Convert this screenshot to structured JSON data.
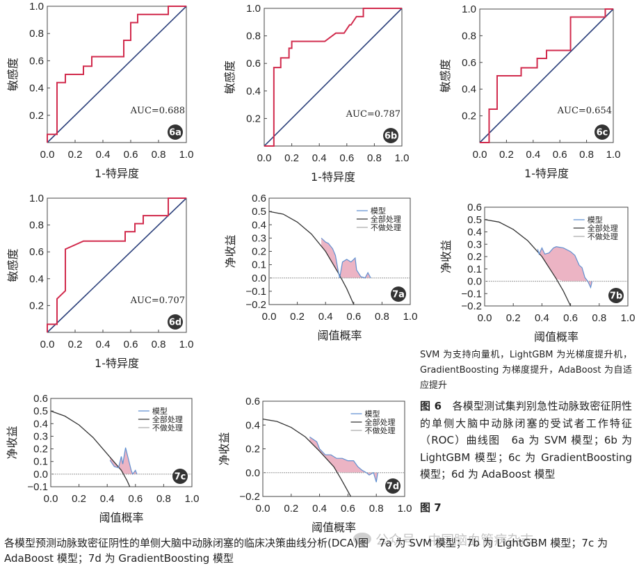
{
  "roc_axes": {
    "ylabel": "敏感度",
    "xlabel": "1-特异度",
    "xticks": [
      "0.0",
      "0.2",
      "0.4",
      "0.6",
      "0.8",
      "1.0"
    ],
    "yticks": [
      "0.2",
      "0.4",
      "0.6",
      "0.8",
      "1.0"
    ]
  },
  "dca_axes": {
    "ylabel": "净收益",
    "xlabel": "阈值概率",
    "xticks": [
      "0.0",
      "0.2",
      "0.4",
      "0.6",
      "0.8",
      "1.0"
    ]
  },
  "legend": {
    "model": "模型",
    "all": "全部处理",
    "none": "不做处理"
  },
  "captions": {
    "note": "SVM 为支持向量机，LightGBM 为光梯度提升机，GradientBoosting 为梯度提升，AdaBoost 为自适应提升",
    "fig6_label": "图 6",
    "fig6_text": "各模型测试集判别急性动脉致密征阴性的单侧大脑中动脉闭塞的受试者工作特征（ROC）曲线图　6a 为 SVM 模型；6b 为 LightGBM 模型；6c 为 GradientBoosting 模型；6d 为 AdaBoost 模型",
    "fig7_label": "图 7",
    "fig7_text": "各模型预测动脉致密征阴性的单侧大脑中动脉闭塞的临床决策曲线分析(DCA)图　7a 为 SVM 模型；7b 为 LightGBM 模型；7c 为AdaBoost 模型；7d 为 GradientBoosting 模型",
    "watermark": "公众号 · 中国脑血管病杂志"
  },
  "chart_data": [
    {
      "id": "6a",
      "type": "line",
      "badge": "6a",
      "auc_label": "AUC=0.688",
      "xlim": [
        0,
        1
      ],
      "ylim": [
        0,
        1
      ],
      "roc": [
        [
          0,
          0
        ],
        [
          0,
          0.06
        ],
        [
          0.07,
          0.06
        ],
        [
          0.07,
          0.44
        ],
        [
          0.13,
          0.44
        ],
        [
          0.13,
          0.5
        ],
        [
          0.26,
          0.5
        ],
        [
          0.26,
          0.56
        ],
        [
          0.32,
          0.56
        ],
        [
          0.32,
          0.63
        ],
        [
          0.55,
          0.63
        ],
        [
          0.55,
          0.75
        ],
        [
          0.6,
          0.75
        ],
        [
          0.6,
          0.88
        ],
        [
          0.65,
          0.88
        ],
        [
          0.65,
          0.94
        ],
        [
          0.87,
          0.94
        ],
        [
          0.87,
          1
        ],
        [
          1,
          1
        ]
      ]
    },
    {
      "id": "6b",
      "type": "line",
      "badge": "6b",
      "auc_label": "AUC=0.787",
      "xlim": [
        0,
        1
      ],
      "ylim": [
        0,
        1
      ],
      "roc": [
        [
          0,
          0
        ],
        [
          0.07,
          0
        ],
        [
          0.07,
          0.57
        ],
        [
          0.12,
          0.57
        ],
        [
          0.12,
          0.64
        ],
        [
          0.18,
          0.64
        ],
        [
          0.18,
          0.71
        ],
        [
          0.2,
          0.71
        ],
        [
          0.2,
          0.76
        ],
        [
          0.44,
          0.76
        ],
        [
          0.52,
          0.82
        ],
        [
          0.58,
          0.82
        ],
        [
          0.62,
          0.88
        ],
        [
          0.63,
          0.88
        ],
        [
          0.67,
          0.94
        ],
        [
          0.72,
          0.94
        ],
        [
          0.72,
          1
        ],
        [
          1,
          1
        ]
      ]
    },
    {
      "id": "6c",
      "type": "line",
      "badge": "6c",
      "auc_label": "AUC=0.654",
      "xlim": [
        0,
        1
      ],
      "ylim": [
        0,
        1
      ],
      "roc": [
        [
          0,
          0
        ],
        [
          0.07,
          0
        ],
        [
          0.07,
          0.25
        ],
        [
          0.13,
          0.25
        ],
        [
          0.13,
          0.5
        ],
        [
          0.31,
          0.5
        ],
        [
          0.31,
          0.56
        ],
        [
          0.43,
          0.56
        ],
        [
          0.43,
          0.63
        ],
        [
          0.5,
          0.63
        ],
        [
          0.5,
          0.69
        ],
        [
          0.68,
          0.69
        ],
        [
          0.68,
          0.94
        ],
        [
          0.94,
          0.94
        ],
        [
          0.94,
          1
        ],
        [
          1,
          1
        ]
      ]
    },
    {
      "id": "6d",
      "type": "line",
      "badge": "6d",
      "auc_label": "AUC=0.707",
      "xlim": [
        0,
        1
      ],
      "ylim": [
        0,
        1
      ],
      "roc": [
        [
          0,
          0
        ],
        [
          0,
          0.06
        ],
        [
          0.07,
          0.06
        ],
        [
          0.07,
          0.25
        ],
        [
          0.13,
          0.31
        ],
        [
          0.13,
          0.62
        ],
        [
          0.26,
          0.68
        ],
        [
          0.56,
          0.68
        ],
        [
          0.56,
          0.75
        ],
        [
          0.63,
          0.75
        ],
        [
          0.63,
          0.81
        ],
        [
          0.69,
          0.81
        ],
        [
          0.69,
          0.87
        ],
        [
          0.87,
          0.87
        ],
        [
          0.87,
          1
        ],
        [
          1,
          1
        ]
      ]
    },
    {
      "id": "7a",
      "type": "area",
      "badge": "7a",
      "xlim": [
        0,
        1
      ],
      "ylim": [
        -0.2,
        0.6
      ],
      "yticks": [
        "0.6",
        "0.5",
        "0.4",
        "0.3",
        "0.2",
        "0.1",
        "0.0",
        "−0.1",
        "−0.2"
      ],
      "all": [
        [
          0,
          0.5
        ],
        [
          0.1,
          0.48
        ],
        [
          0.2,
          0.42
        ],
        [
          0.3,
          0.33
        ],
        [
          0.4,
          0.2
        ],
        [
          0.5,
          0.02
        ],
        [
          0.55,
          -0.08
        ],
        [
          0.6,
          -0.2
        ]
      ],
      "model": [
        [
          0.37,
          0.3
        ],
        [
          0.4,
          0.27
        ],
        [
          0.42,
          0.26
        ],
        [
          0.45,
          0.22
        ],
        [
          0.47,
          0.17
        ],
        [
          0.49,
          0.05
        ],
        [
          0.5,
          0.0
        ],
        [
          0.52,
          0.12
        ],
        [
          0.55,
          0.14
        ],
        [
          0.58,
          0.12
        ],
        [
          0.61,
          0.15
        ],
        [
          0.62,
          0.06
        ],
        [
          0.65,
          0.01
        ],
        [
          0.68,
          0.0
        ],
        [
          0.7,
          0.04
        ],
        [
          0.72,
          0.0
        ]
      ]
    },
    {
      "id": "7b",
      "type": "area",
      "badge": "7b",
      "xlim": [
        0,
        1
      ],
      "ylim": [
        -0.2,
        0.6
      ],
      "yticks": [
        "0.6",
        "0.5",
        "0.4",
        "0.3",
        "0.2",
        "0.1",
        "0.0",
        "−0.1",
        "−0.2"
      ],
      "all": [
        [
          0,
          0.5
        ],
        [
          0.1,
          0.48
        ],
        [
          0.2,
          0.42
        ],
        [
          0.3,
          0.33
        ],
        [
          0.4,
          0.2
        ],
        [
          0.5,
          0.02
        ],
        [
          0.55,
          -0.08
        ],
        [
          0.6,
          -0.2
        ]
      ],
      "model": [
        [
          0.37,
          0.26
        ],
        [
          0.38,
          0.22
        ],
        [
          0.4,
          0.27
        ],
        [
          0.42,
          0.22
        ],
        [
          0.45,
          0.23
        ],
        [
          0.48,
          0.27
        ],
        [
          0.5,
          0.28
        ],
        [
          0.55,
          0.27
        ],
        [
          0.6,
          0.24
        ],
        [
          0.63,
          0.21
        ],
        [
          0.66,
          0.13
        ],
        [
          0.68,
          0.11
        ],
        [
          0.7,
          0.03
        ],
        [
          0.72,
          0.0
        ],
        [
          0.74,
          -0.05
        ],
        [
          0.75,
          0.0
        ]
      ]
    },
    {
      "id": "7c",
      "type": "area",
      "badge": "7c",
      "xlim": [
        0,
        1
      ],
      "ylim": [
        -0.1,
        0.6
      ],
      "yticks": [
        "0.6",
        "0.5",
        "0.4",
        "0.3",
        "0.2",
        "0.1",
        "0.0",
        "−0.1"
      ],
      "all": [
        [
          0,
          0.5
        ],
        [
          0.1,
          0.46
        ],
        [
          0.2,
          0.39
        ],
        [
          0.3,
          0.29
        ],
        [
          0.4,
          0.16
        ],
        [
          0.5,
          0.03
        ],
        [
          0.54,
          -0.05
        ],
        [
          0.56,
          -0.1
        ]
      ],
      "model": [
        [
          0.42,
          0.11
        ],
        [
          0.45,
          0.06
        ],
        [
          0.48,
          0.05
        ],
        [
          0.5,
          0.14
        ],
        [
          0.51,
          0.08
        ],
        [
          0.53,
          0.21
        ],
        [
          0.55,
          0.12
        ],
        [
          0.57,
          0.03
        ],
        [
          0.58,
          0.0
        ],
        [
          0.6,
          0.03
        ],
        [
          0.61,
          0.0
        ]
      ]
    },
    {
      "id": "7d",
      "type": "area",
      "badge": "7d",
      "xlim": [
        0,
        1
      ],
      "ylim": [
        -0.2,
        0.6
      ],
      "yticks": [
        "0.6",
        "0.4",
        "0.2",
        "0.0",
        "−0.2"
      ],
      "all": [
        [
          0,
          0.45
        ],
        [
          0.1,
          0.43
        ],
        [
          0.2,
          0.38
        ],
        [
          0.3,
          0.3
        ],
        [
          0.4,
          0.18
        ],
        [
          0.5,
          0.05
        ],
        [
          0.55,
          -0.05
        ],
        [
          0.62,
          -0.2
        ]
      ],
      "model": [
        [
          0.33,
          0.3
        ],
        [
          0.38,
          0.26
        ],
        [
          0.4,
          0.2
        ],
        [
          0.44,
          0.15
        ],
        [
          0.48,
          0.15
        ],
        [
          0.52,
          0.12
        ],
        [
          0.56,
          0.12
        ],
        [
          0.6,
          0.1
        ],
        [
          0.64,
          0.1
        ],
        [
          0.67,
          0.05
        ],
        [
          0.7,
          0.02
        ],
        [
          0.73,
          0.0
        ],
        [
          0.75,
          -0.02
        ],
        [
          0.78,
          0.0
        ],
        [
          0.8,
          -0.08
        ],
        [
          0.81,
          0.0
        ]
      ]
    }
  ]
}
